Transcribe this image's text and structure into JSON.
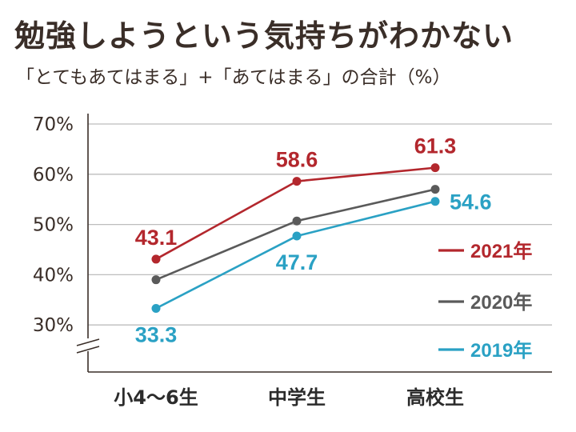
{
  "header": {
    "title": "勉強しようという気持ちがわかない",
    "subtitle": "「とてもあてはまる」+「あてはまる」の合計（%）"
  },
  "chart_data": {
    "type": "line",
    "title": "勉強しようという気持ちがわかない",
    "subtitle": "「とてもあてはまる」+「あてはまる」の合計（%）",
    "categories": [
      "小4〜6生",
      "中学生",
      "高校生"
    ],
    "y_ticks": [
      "70%",
      "60%",
      "50%",
      "40%",
      "30%"
    ],
    "ylim": [
      25,
      72
    ],
    "y_axis_break": true,
    "grid": true,
    "legend_placement": "right",
    "series": [
      {
        "name": "2021年",
        "color": "#b3272d",
        "values": [
          43.1,
          58.6,
          61.3
        ],
        "labels": [
          "43.1",
          "58.6",
          "61.3"
        ],
        "label_pos": [
          "above",
          "above",
          "above"
        ]
      },
      {
        "name": "2020年",
        "color": "#5a5a5a",
        "values": [
          39.0,
          50.7,
          57.0
        ],
        "labels": null
      },
      {
        "name": "2019年",
        "color": "#2aa1c4",
        "values": [
          33.3,
          47.7,
          54.6
        ],
        "labels": [
          "33.3",
          "47.7",
          "54.6"
        ],
        "label_pos": [
          "below",
          "below",
          "right"
        ]
      }
    ]
  }
}
